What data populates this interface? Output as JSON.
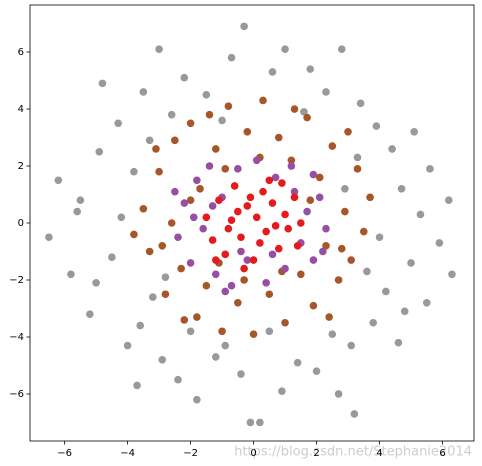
{
  "chart_data": {
    "type": "scatter",
    "xlim": [
      -7.1,
      7.0
    ],
    "ylim": [
      -7.65,
      7.65
    ],
    "xticks": [
      {
        "value": -6,
        "label": "−6"
      },
      {
        "value": -4,
        "label": "−4"
      },
      {
        "value": -2,
        "label": "−2"
      },
      0,
      2,
      4,
      6
    ],
    "yticks": [
      {
        "value": -6,
        "label": "−6"
      },
      {
        "value": -4,
        "label": "−4"
      },
      {
        "value": -2,
        "label": "−2"
      },
      0,
      2,
      4,
      6
    ],
    "watermark": "https://blog.csdn.net/Stephanie2014",
    "series": [
      {
        "color": "#999999",
        "x": [
          -6.5,
          -6.2,
          -5.8,
          -5.5,
          -5.2,
          -4.9,
          -4.8,
          -4.5,
          -4.3,
          -4.0,
          -3.8,
          -3.7,
          -3.5,
          -3.2,
          -3.0,
          -2.9,
          -2.6,
          -2.4,
          -2.2,
          -1.8,
          -1.5,
          -1.2,
          -0.7,
          -0.4,
          -0.3,
          -0.1,
          0.2,
          0.6,
          0.9,
          1.0,
          1.4,
          1.8,
          2.0,
          2.3,
          2.7,
          2.8,
          3.1,
          3.2,
          3.4,
          3.8,
          3.9,
          4.2,
          4.4,
          4.6,
          4.7,
          5.0,
          5.1,
          5.3,
          5.5,
          5.6,
          5.9,
          6.2,
          6.3,
          -5.0,
          -4.2,
          -3.6,
          3.3,
          4.0,
          -2.0,
          2.5,
          -3.3,
          1.6,
          -1.0,
          0.5,
          4.8,
          -5.6,
          3.6,
          -2.8,
          2.9,
          -0.9
        ],
        "values": [
          -0.5,
          1.5,
          -1.8,
          0.8,
          -3.2,
          2.5,
          4.9,
          -1.2,
          3.5,
          -4.3,
          1.8,
          -5.7,
          4.6,
          -2.6,
          6.1,
          -4.8,
          3.8,
          -5.5,
          5.1,
          -6.2,
          4.5,
          -4.7,
          5.8,
          -5.3,
          6.9,
          -7.0,
          -7.0,
          5.3,
          -5.9,
          6.1,
          -4.9,
          5.4,
          -5.2,
          4.6,
          -6.0,
          6.1,
          -4.3,
          -6.7,
          4.2,
          -3.5,
          3.4,
          -2.4,
          2.6,
          -4.2,
          1.2,
          -1.4,
          3.2,
          0.3,
          -2.8,
          1.9,
          -0.7,
          0.8,
          -1.8,
          -2.1,
          0.2,
          -3.6,
          2.3,
          -0.5,
          -3.8,
          -3.9,
          2.9,
          3.9,
          3.6,
          -3.8,
          -3.1,
          0.4,
          -1.7,
          -1.9,
          1.2,
          -4.3
        ]
      },
      {
        "color": "#a65628",
        "x": [
          -3.5,
          -3.3,
          -3.0,
          -2.8,
          -2.6,
          -2.5,
          -2.3,
          -2.0,
          -1.8,
          -1.7,
          -1.5,
          -1.2,
          -1.0,
          -0.8,
          -0.5,
          -0.2,
          0.0,
          0.3,
          0.5,
          0.8,
          1.0,
          1.2,
          1.5,
          1.7,
          1.9,
          2.1,
          2.3,
          2.5,
          2.7,
          2.9,
          3.1,
          3.3,
          3.5,
          3.7,
          -3.8,
          -2.2,
          2.4,
          -1.4,
          1.3,
          -0.9,
          0.9,
          -2.9,
          2.8,
          0.2,
          -0.3,
          1.8,
          -2.0,
          3.0,
          -3.1,
          -1.1
        ],
        "values": [
          0.5,
          -1.0,
          1.8,
          -2.5,
          0.0,
          2.9,
          -1.6,
          3.5,
          -3.3,
          1.2,
          -2.2,
          2.6,
          -3.8,
          4.1,
          -2.8,
          3.2,
          -3.9,
          4.3,
          -2.5,
          3.0,
          -3.5,
          2.2,
          -1.8,
          3.7,
          -2.9,
          1.6,
          -0.8,
          2.7,
          -2.0,
          0.4,
          -1.3,
          1.9,
          -0.3,
          0.9,
          -0.4,
          -3.4,
          -3.3,
          3.8,
          4.0,
          1.9,
          -1.7,
          -0.8,
          -0.9,
          2.3,
          -2.0,
          0.8,
          0.8,
          3.2,
          2.6,
          -1.4
        ]
      },
      {
        "color": "#984ea3",
        "x": [
          -2.4,
          -2.2,
          -2.0,
          -1.8,
          -1.6,
          -1.4,
          -1.2,
          -1.0,
          -0.7,
          -0.5,
          -0.2,
          0.1,
          0.4,
          0.7,
          1.0,
          1.3,
          1.5,
          1.7,
          1.9,
          2.1,
          2.3,
          -1.9,
          1.2,
          -0.9,
          2.2,
          -2.5,
          0.6,
          -1.3,
          1.9,
          -0.4
        ],
        "values": [
          -0.5,
          0.7,
          -1.4,
          1.5,
          -0.2,
          2.0,
          -1.8,
          0.9,
          -2.2,
          1.9,
          -1.3,
          2.2,
          -2.1,
          1.6,
          -1.6,
          1.1,
          -0.7,
          0.4,
          -1.3,
          0.9,
          -0.2,
          0.2,
          2.0,
          -2.4,
          -1.0,
          1.1,
          -1.1,
          0.6,
          1.7,
          -1.0
        ]
      },
      {
        "color": "#e41a1c",
        "x": [
          -1.5,
          -1.3,
          -1.1,
          -0.9,
          -0.7,
          -0.6,
          -0.4,
          -0.2,
          0.0,
          0.1,
          0.3,
          0.4,
          0.6,
          0.8,
          1.0,
          1.1,
          1.3,
          1.4,
          -0.3,
          0.5,
          -0.8,
          0.9,
          -1.2,
          0.2,
          -0.1,
          1.5,
          -0.5,
          0.7
        ],
        "values": [
          0.2,
          -0.6,
          0.8,
          -1.1,
          0.1,
          1.3,
          -0.5,
          0.6,
          -1.3,
          0.2,
          1.1,
          -0.3,
          0.7,
          -0.9,
          0.3,
          -0.2,
          0.9,
          -0.8,
          -1.6,
          1.5,
          -0.2,
          1.4,
          -1.3,
          -0.7,
          0.9,
          0.0,
          0.4,
          -0.1
        ]
      }
    ]
  }
}
